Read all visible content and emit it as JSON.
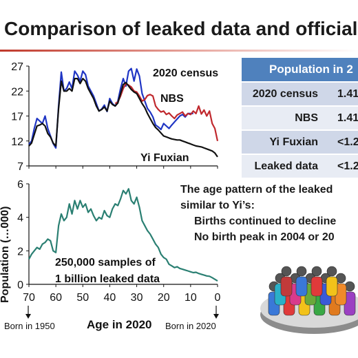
{
  "slide": {
    "title": "Comparison of leaked data and official d",
    "note_lines": [
      "The age pattern of the leaked",
      "similar to Yi’s:",
      "Births continued to decline",
      "No birth peak in 2004 or 20"
    ],
    "figure": "people-group"
  },
  "population_table": {
    "header": "Population in 2",
    "rows": [
      {
        "source": "2020 census",
        "value": "1.41"
      },
      {
        "source": "NBS",
        "value": "1.41"
      },
      {
        "source": "Yi Fuxian",
        "value": "<1.2"
      },
      {
        "source": "Leaked data",
        "value": "<1.2"
      }
    ],
    "colors": {
      "header": "#4f81bd",
      "row_odd": "#cfd7e8",
      "row_even": "#e8ecf4"
    }
  },
  "chart_data": [
    {
      "type": "line",
      "xlim": [
        70,
        0
      ],
      "ylim": [
        7,
        27
      ],
      "yticks": [
        "7",
        "12",
        "17",
        "22",
        "27"
      ],
      "series": [
        {
          "name": "2020 census",
          "color": "#1f35c4",
          "x": [
            70,
            69,
            68,
            67,
            66,
            65,
            64,
            63,
            62,
            61,
            60,
            59,
            58,
            57,
            56,
            55,
            54,
            53,
            52,
            51,
            50,
            49,
            48,
            47,
            46,
            45,
            44,
            43,
            42,
            41,
            40,
            39,
            38,
            37,
            36,
            35,
            34,
            33,
            32,
            31,
            30,
            29,
            28,
            27,
            26,
            25,
            24,
            23,
            22,
            21,
            20,
            19,
            18,
            17,
            16,
            15,
            14,
            13,
            12,
            11,
            10,
            9
          ],
          "y": [
            11.3,
            12.0,
            14.5,
            16.5,
            16.0,
            15.5,
            17.0,
            14.5,
            13.0,
            11.5,
            10.6,
            19.0,
            25.8,
            22.0,
            22.5,
            23.8,
            22.5,
            26.0,
            25.2,
            24.0,
            26.0,
            25.3,
            23.0,
            22.0,
            21.0,
            19.5,
            18.0,
            18.4,
            19.2,
            17.9,
            20.5,
            19.5,
            19.0,
            20.0,
            22.5,
            24.5,
            23.0,
            26.0,
            26.5,
            24.0,
            26.4,
            25.0,
            21.5,
            20.0,
            18.5,
            17.8,
            16.8,
            15.2,
            14.8,
            14.3,
            15.5,
            15.0,
            14.5,
            15.2,
            15.8,
            16.4,
            17.0,
            17.3,
            16.8,
            17.5,
            17.5,
            17.5
          ]
        },
        {
          "name": "NBS",
          "color": "#c0282d",
          "x": [
            38,
            37,
            36,
            35,
            34,
            33,
            32,
            31,
            30,
            29,
            28,
            27,
            26,
            25,
            24,
            23,
            22,
            21,
            20,
            19,
            18,
            17,
            16,
            15,
            14,
            13,
            12,
            11,
            10,
            9,
            8,
            7,
            6,
            5,
            4,
            3,
            2,
            1,
            0
          ],
          "y": [
            19.5,
            19.8,
            21.0,
            22.5,
            23.5,
            23.2,
            22.8,
            22.0,
            21.8,
            21.0,
            20.0,
            20.3,
            21.1,
            21.3,
            21.0,
            19.0,
            18.3,
            17.8,
            18.0,
            17.3,
            17.6,
            17.0,
            16.5,
            17.2,
            17.5,
            17.8,
            17.0,
            17.5,
            17.3,
            18.0,
            17.5,
            19.0,
            17.4,
            18.2,
            17.0,
            18.0,
            15.5,
            14.5,
            12.0
          ]
        },
        {
          "name": "Yi Fuxian",
          "color": "#111111",
          "x": [
            70,
            69,
            68,
            67,
            66,
            65,
            64,
            63,
            62,
            61,
            60,
            59,
            58,
            57,
            56,
            55,
            54,
            53,
            52,
            51,
            50,
            49,
            48,
            47,
            46,
            45,
            44,
            43,
            42,
            41,
            40,
            39,
            38,
            37,
            36,
            35,
            34,
            33,
            32,
            31,
            30,
            29,
            28,
            27,
            26,
            25,
            24,
            23,
            22,
            21,
            20,
            19,
            18,
            17,
            16,
            15,
            14,
            13,
            12,
            11,
            10,
            9,
            8,
            7,
            6,
            5,
            4,
            3,
            2,
            1,
            0
          ],
          "y": [
            11.0,
            11.6,
            13.3,
            15.0,
            15.2,
            15.5,
            15.0,
            13.5,
            12.8,
            11.6,
            11.0,
            18.5,
            24.0,
            22.0,
            22.0,
            22.5,
            22.0,
            24.5,
            24.5,
            23.5,
            24.5,
            24.0,
            22.5,
            21.5,
            20.5,
            19.0,
            18.0,
            18.3,
            18.8,
            18.0,
            20.0,
            19.3,
            19.0,
            19.6,
            21.5,
            23.3,
            23.7,
            23.0,
            22.3,
            21.8,
            21.5,
            20.5,
            19.5,
            18.7,
            17.5,
            16.5,
            15.5,
            14.7,
            14.2,
            13.6,
            13.0,
            12.8,
            12.6,
            12.4,
            12.3,
            12.2,
            12.2,
            12.0,
            11.8,
            11.6,
            11.4,
            11.2,
            11.0,
            10.9,
            10.8,
            10.6,
            10.4,
            10.2,
            10.0,
            9.6,
            8.8
          ]
        }
      ]
    },
    {
      "type": "line",
      "xlim": [
        70,
        0
      ],
      "ylim": [
        0,
        6
      ],
      "yticks": [
        "0",
        "2",
        "4",
        "6"
      ],
      "xticks": [
        "70",
        "60",
        "50",
        "40",
        "30",
        "20",
        "10",
        "0"
      ],
      "xlabel": "Age in 2020",
      "ylabel": "Population (…000)",
      "endpoint_labels": {
        "left": "Born in 1950",
        "right": "Born in 2020"
      },
      "annotation": [
        "250,000 samples of",
        "1 billion leaked data"
      ],
      "series": [
        {
          "name": "",
          "color": "#2a7f72",
          "x": [
            70,
            69,
            68,
            67,
            66,
            65,
            64,
            63,
            62,
            61,
            60,
            59,
            58,
            57,
            56,
            55,
            54,
            53,
            52,
            51,
            50,
            49,
            48,
            47,
            46,
            45,
            44,
            43,
            42,
            41,
            40,
            39,
            38,
            37,
            36,
            35,
            34,
            33,
            32,
            31,
            30,
            29,
            28,
            27,
            26,
            25,
            24,
            23,
            22,
            21,
            20,
            19,
            18,
            17,
            16,
            15,
            14,
            13,
            12,
            11,
            10,
            9,
            8,
            7,
            6,
            5,
            4,
            3,
            2,
            1,
            0
          ],
          "y": [
            1.5,
            1.8,
            2.0,
            2.2,
            2.1,
            2.4,
            2.5,
            2.7,
            2.6,
            2.0,
            1.9,
            3.5,
            4.2,
            3.8,
            4.0,
            4.8,
            4.2,
            5.0,
            4.5,
            5.0,
            4.6,
            4.8,
            4.3,
            4.5,
            4.1,
            3.8,
            4.0,
            3.9,
            4.4,
            4.1,
            4.0,
            4.5,
            4.8,
            4.7,
            5.1,
            5.6,
            5.4,
            5.7,
            5.0,
            4.8,
            5.2,
            4.6,
            3.8,
            3.5,
            3.2,
            3.0,
            2.7,
            2.4,
            2.2,
            1.8,
            1.6,
            1.5,
            1.2,
            1.1,
            1.0,
            1.05,
            0.95,
            0.9,
            0.85,
            0.8,
            0.75,
            0.7,
            0.72,
            0.65,
            0.6,
            0.55,
            0.5,
            0.48,
            0.4,
            0.3,
            0.2
          ]
        }
      ]
    }
  ]
}
